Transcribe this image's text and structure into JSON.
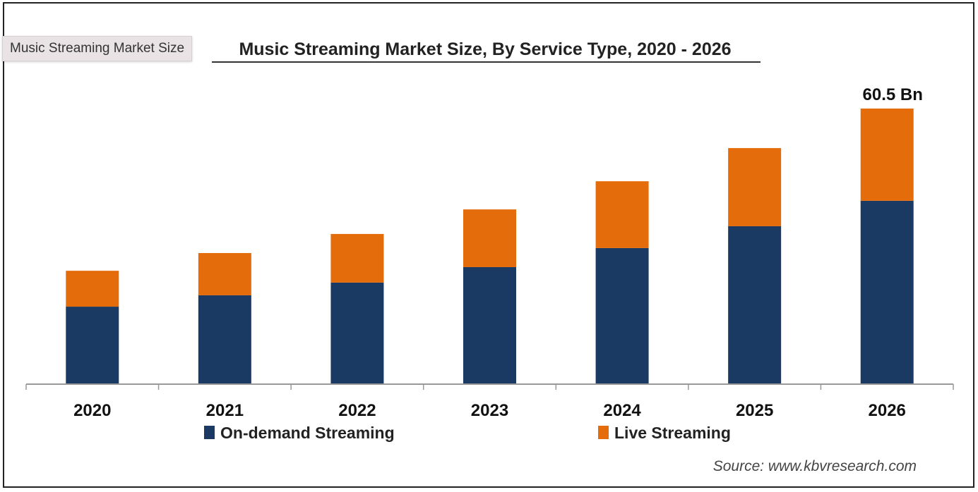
{
  "tooltip": {
    "text": "Music Streaming Market Size"
  },
  "colors": {
    "on_demand": "#1b3a63",
    "live": "#e46c0a",
    "axis": "#999999",
    "text": "#111111"
  },
  "chart_data": {
    "type": "bar",
    "stacked": true,
    "title": "Music Streaming Market Size, By Service Type, 2020 - 2026",
    "xlabel": "",
    "ylabel": "",
    "categories": [
      "2020",
      "2021",
      "2022",
      "2023",
      "2024",
      "2025",
      "2026"
    ],
    "series": [
      {
        "name": "On-demand Streaming",
        "color": "#1b3a63",
        "values": [
          16.9,
          19.4,
          22.2,
          25.6,
          29.8,
          34.6,
          40.2
        ]
      },
      {
        "name": "Live Streaming",
        "color": "#e46c0a",
        "values": [
          7.9,
          9.3,
          10.7,
          12.7,
          14.7,
          17.2,
          20.3
        ]
      }
    ],
    "annotations": [
      {
        "category": "2026",
        "text": "60.5 Bn"
      }
    ],
    "ylim": [
      0,
      60.5
    ],
    "grid": false,
    "legend": "bottom",
    "source": "Source: www.kbvresearch.com"
  }
}
